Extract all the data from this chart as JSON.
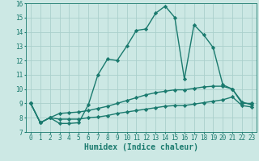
{
  "xlabel": "Humidex (Indice chaleur)",
  "bg_color": "#cce8e4",
  "grid_color": "#aad0cc",
  "line_color": "#1a7a6e",
  "xlim": [
    -0.5,
    23.5
  ],
  "ylim": [
    7,
    16
  ],
  "xticks": [
    0,
    1,
    2,
    3,
    4,
    5,
    6,
    7,
    8,
    9,
    10,
    11,
    12,
    13,
    14,
    15,
    16,
    17,
    18,
    19,
    20,
    21,
    22,
    23
  ],
  "yticks": [
    7,
    8,
    9,
    10,
    11,
    12,
    13,
    14,
    15,
    16
  ],
  "series1_x": [
    0,
    1,
    2,
    3,
    4,
    5,
    6,
    7,
    8,
    9,
    10,
    11,
    12,
    13,
    14,
    15,
    16,
    17,
    18,
    19,
    20,
    21,
    22,
    23
  ],
  "series1_y": [
    9.0,
    7.65,
    8.0,
    7.6,
    7.6,
    7.65,
    8.9,
    11.0,
    12.1,
    12.0,
    13.0,
    14.1,
    14.2,
    15.3,
    15.8,
    15.0,
    10.7,
    14.5,
    13.8,
    12.9,
    10.3,
    10.0,
    9.0,
    9.0
  ],
  "series2_x": [
    0,
    1,
    2,
    3,
    4,
    5,
    6,
    7,
    8,
    9,
    10,
    11,
    12,
    13,
    14,
    15,
    16,
    17,
    18,
    19,
    20,
    21,
    22,
    23
  ],
  "series2_y": [
    9.0,
    7.65,
    8.0,
    8.3,
    8.35,
    8.4,
    8.5,
    8.65,
    8.8,
    9.0,
    9.2,
    9.4,
    9.6,
    9.75,
    9.85,
    9.95,
    9.95,
    10.05,
    10.15,
    10.2,
    10.2,
    10.0,
    9.1,
    8.9
  ],
  "series3_x": [
    0,
    1,
    2,
    3,
    4,
    5,
    6,
    7,
    8,
    9,
    10,
    11,
    12,
    13,
    14,
    15,
    16,
    17,
    18,
    19,
    20,
    21,
    22,
    23
  ],
  "series3_y": [
    9.0,
    7.65,
    8.0,
    7.9,
    7.9,
    7.9,
    8.0,
    8.05,
    8.15,
    8.3,
    8.4,
    8.5,
    8.6,
    8.7,
    8.8,
    8.85,
    8.85,
    8.95,
    9.05,
    9.15,
    9.25,
    9.45,
    8.85,
    8.75
  ],
  "marker": "D",
  "markersize": 2.2,
  "linewidth": 1.0,
  "xlabel_fontsize": 7,
  "tick_fontsize": 5.5
}
